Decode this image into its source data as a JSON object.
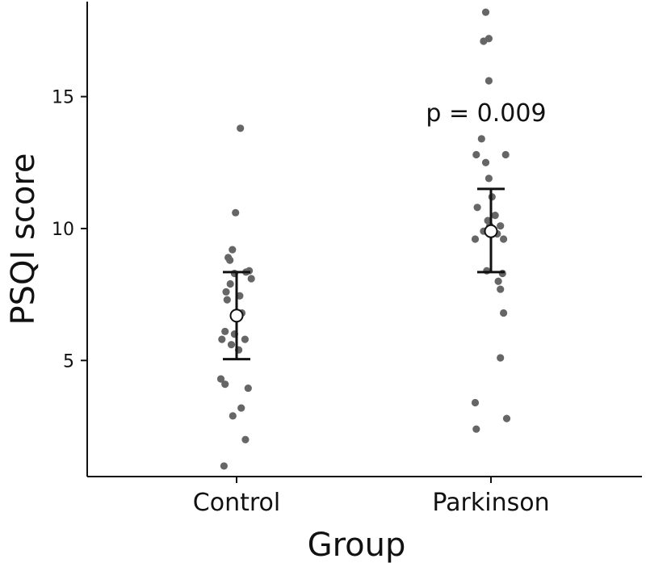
{
  "chart_data": {
    "type": "scatter",
    "title": "",
    "xlabel": "Group",
    "ylabel": "PSQI score",
    "categories": [
      "Control",
      "Parkinson"
    ],
    "ylim": [
      0.6,
      18.6
    ],
    "yticks": [
      5,
      10,
      15
    ],
    "grid": false,
    "annotation": {
      "text": "p = 0.009",
      "category": "Parkinson",
      "y": 14.4
    },
    "colors": {
      "point": "#666666",
      "summary_fill": "#ffffff",
      "summary_stroke": "#111111",
      "axis": "#111111"
    },
    "series": [
      {
        "category": "Control",
        "mean": 6.7,
        "error_low": 5.05,
        "error_high": 8.35,
        "points": [
          {
            "jitter": 0.18,
            "y": 13.8
          },
          {
            "jitter": -0.05,
            "y": 10.6
          },
          {
            "jitter": -0.2,
            "y": 9.2
          },
          {
            "jitter": -0.4,
            "y": 8.9
          },
          {
            "jitter": -0.32,
            "y": 8.8
          },
          {
            "jitter": 0.6,
            "y": 8.4
          },
          {
            "jitter": 0.45,
            "y": 8.35
          },
          {
            "jitter": -0.1,
            "y": 8.3
          },
          {
            "jitter": 0.7,
            "y": 8.1
          },
          {
            "jitter": -0.3,
            "y": 7.9
          },
          {
            "jitter": -0.5,
            "y": 7.6
          },
          {
            "jitter": 0.15,
            "y": 7.45
          },
          {
            "jitter": -0.45,
            "y": 7.3
          },
          {
            "jitter": 0.25,
            "y": 6.8
          },
          {
            "jitter": 0.0,
            "y": 6.6
          },
          {
            "jitter": -0.55,
            "y": 6.1
          },
          {
            "jitter": -0.1,
            "y": 6.0
          },
          {
            "jitter": -0.7,
            "y": 5.8
          },
          {
            "jitter": 0.4,
            "y": 5.8
          },
          {
            "jitter": -0.25,
            "y": 5.6
          },
          {
            "jitter": 0.1,
            "y": 5.4
          },
          {
            "jitter": -0.75,
            "y": 4.3
          },
          {
            "jitter": -0.55,
            "y": 4.1
          },
          {
            "jitter": 0.55,
            "y": 3.95
          },
          {
            "jitter": 0.22,
            "y": 3.2
          },
          {
            "jitter": -0.18,
            "y": 2.9
          },
          {
            "jitter": 0.42,
            "y": 2.0
          },
          {
            "jitter": -0.6,
            "y": 1.0
          }
        ]
      },
      {
        "category": "Parkinson",
        "mean": 9.9,
        "error_low": 8.35,
        "error_high": 11.5,
        "points": [
          {
            "jitter": -0.25,
            "y": 18.2
          },
          {
            "jitter": -0.35,
            "y": 17.1
          },
          {
            "jitter": -0.1,
            "y": 17.2
          },
          {
            "jitter": -0.1,
            "y": 15.6
          },
          {
            "jitter": -0.45,
            "y": 13.4
          },
          {
            "jitter": -0.7,
            "y": 12.8
          },
          {
            "jitter": 0.7,
            "y": 12.8
          },
          {
            "jitter": -0.25,
            "y": 12.5
          },
          {
            "jitter": -0.1,
            "y": 11.9
          },
          {
            "jitter": 0.05,
            "y": 11.2
          },
          {
            "jitter": -0.65,
            "y": 10.8
          },
          {
            "jitter": 0.2,
            "y": 10.5
          },
          {
            "jitter": -0.15,
            "y": 10.3
          },
          {
            "jitter": -0.05,
            "y": 10.1
          },
          {
            "jitter": 0.45,
            "y": 10.1
          },
          {
            "jitter": -0.35,
            "y": 9.9
          },
          {
            "jitter": 0.3,
            "y": 9.8
          },
          {
            "jitter": -0.75,
            "y": 9.6
          },
          {
            "jitter": 0.6,
            "y": 9.6
          },
          {
            "jitter": -0.2,
            "y": 8.4
          },
          {
            "jitter": 0.55,
            "y": 8.3
          },
          {
            "jitter": 0.35,
            "y": 8.0
          },
          {
            "jitter": 0.45,
            "y": 7.7
          },
          {
            "jitter": 0.6,
            "y": 6.8
          },
          {
            "jitter": 0.45,
            "y": 5.1
          },
          {
            "jitter": -0.75,
            "y": 3.4
          },
          {
            "jitter": 0.75,
            "y": 2.8
          },
          {
            "jitter": -0.7,
            "y": 2.4
          }
        ]
      }
    ]
  }
}
